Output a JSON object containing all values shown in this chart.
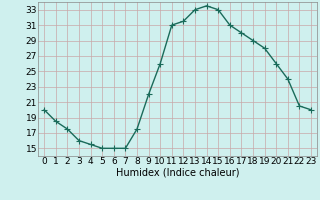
{
  "x": [
    0,
    1,
    2,
    3,
    4,
    5,
    6,
    7,
    8,
    9,
    10,
    11,
    12,
    13,
    14,
    15,
    16,
    17,
    18,
    19,
    20,
    21,
    22,
    23
  ],
  "y": [
    20,
    18.5,
    17.5,
    16,
    15.5,
    15,
    15,
    15,
    17.5,
    22,
    26,
    31,
    31.5,
    33,
    33.5,
    33,
    31,
    30,
    29,
    28,
    26,
    24,
    20.5,
    20
  ],
  "line_color": "#1a6b5a",
  "marker": "+",
  "marker_size": 4,
  "bg_color": "#cff0ee",
  "grid_color_major": "#c8a8a8",
  "grid_color_minor": "#c8a8a8",
  "xlabel": "Humidex (Indice chaleur)",
  "xlim": [
    -0.5,
    23.5
  ],
  "ylim": [
    14,
    34
  ],
  "yticks": [
    15,
    17,
    19,
    21,
    23,
    25,
    27,
    29,
    31,
    33
  ],
  "xticks": [
    0,
    1,
    2,
    3,
    4,
    5,
    6,
    7,
    8,
    9,
    10,
    11,
    12,
    13,
    14,
    15,
    16,
    17,
    18,
    19,
    20,
    21,
    22,
    23
  ],
  "xlabel_fontsize": 7,
  "tick_fontsize": 6.5,
  "line_width": 1.0,
  "marker_edge_width": 0.8,
  "fig_bg": "#cff0ee"
}
